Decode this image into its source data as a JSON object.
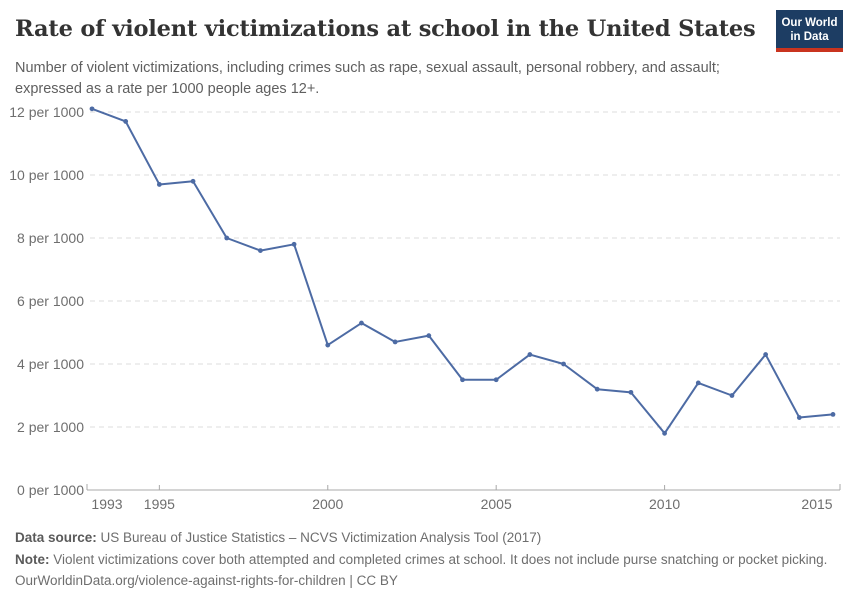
{
  "header": {
    "title": "Rate of violent victimizations at school in the United States",
    "subtitle": "Number of violent victimizations, including crimes such as rape, sexual assault, personal robbery, and assault;\nexpressed as a rate per 1000 people ages 12+.",
    "logo": {
      "line1": "Our World",
      "line2": "in Data",
      "bg_color": "#1d3d63",
      "accent_color": "#c9341f"
    }
  },
  "footer": {
    "data_source_label": "Data source:",
    "data_source_value": " US Bureau of Justice Statistics – NCVS Victimization Analysis Tool (2017)",
    "note_label": "Note:",
    "note_value": " Violent victimizations cover both attempted and completed crimes at school. It does not include purse snatching or pocket picking.",
    "link": "OurWorldinData.org/violence-against-rights-for-children",
    "license": " | CC BY"
  },
  "chart_data": {
    "type": "line",
    "title": "Rate of violent victimizations at school in the United States",
    "xlabel": "",
    "ylabel": "",
    "legend_position": "none",
    "grid": true,
    "ylim": [
      0,
      12
    ],
    "ytick_step": 2,
    "ytick_suffix": " per 1000",
    "xticks": [
      1993,
      1995,
      2000,
      2005,
      2010,
      2015
    ],
    "x": [
      1993,
      1994,
      1995,
      1996,
      1997,
      1998,
      1999,
      2000,
      2001,
      2002,
      2003,
      2004,
      2005,
      2006,
      2007,
      2008,
      2009,
      2010,
      2011,
      2012,
      2013,
      2014,
      2015
    ],
    "series": [
      {
        "name": "United States",
        "values": [
          12.1,
          11.7,
          9.7,
          9.8,
          8.0,
          7.6,
          7.8,
          4.6,
          5.3,
          4.7,
          4.9,
          3.5,
          3.5,
          4.3,
          4.0,
          3.2,
          3.1,
          1.8,
          3.4,
          3.0,
          4.3,
          2.3,
          2.4
        ]
      }
    ],
    "line_color": "#4D6BA4",
    "grid_color": "#dcdcdc",
    "axis_color": "#a8a8a8"
  }
}
